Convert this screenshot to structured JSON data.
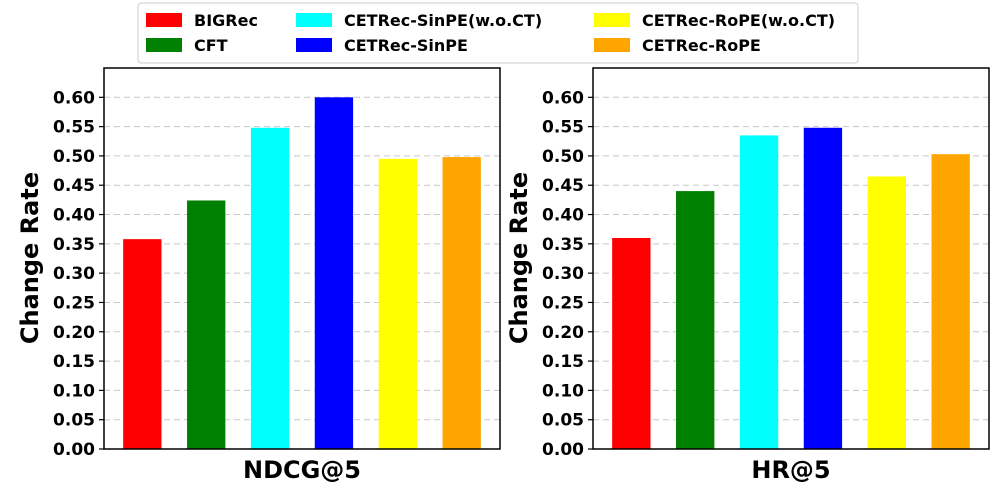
{
  "legend": [
    {
      "label": "BIGRec",
      "color": "#ff0000"
    },
    {
      "label": "CFT",
      "color": "#008000"
    },
    {
      "label": "CETRec-SinPE(w.o.CT)",
      "color": "#00ffff"
    },
    {
      "label": "CETRec-SinPE",
      "color": "#0000ff"
    },
    {
      "label": "CETRec-RoPE(w.o.CT)",
      "color": "#ffff00"
    },
    {
      "label": "CETRec-RoPE",
      "color": "#ffa500"
    }
  ],
  "chart_data": [
    {
      "type": "bar",
      "title": "",
      "xlabel": "NDCG@5",
      "ylabel": "Change Rate",
      "ylim": [
        0,
        0.65
      ],
      "yticks": [
        "0.00",
        "0.05",
        "0.10",
        "0.15",
        "0.20",
        "0.25",
        "0.30",
        "0.35",
        "0.40",
        "0.45",
        "0.50",
        "0.55",
        "0.60"
      ],
      "grid": "y-dashed",
      "categories": [
        "BIGRec",
        "CFT",
        "CETRec-SinPE(w.o.CT)",
        "CETRec-SinPE",
        "CETRec-RoPE(w.o.CT)",
        "CETRec-RoPE"
      ],
      "values": [
        0.358,
        0.424,
        0.548,
        0.6,
        0.495,
        0.498
      ],
      "colors": [
        "#ff0000",
        "#008000",
        "#00ffff",
        "#0000ff",
        "#ffff00",
        "#ffa500"
      ]
    },
    {
      "type": "bar",
      "title": "",
      "xlabel": "HR@5",
      "ylabel": "Change Rate",
      "ylim": [
        0,
        0.65
      ],
      "yticks": [
        "0.00",
        "0.05",
        "0.10",
        "0.15",
        "0.20",
        "0.25",
        "0.30",
        "0.35",
        "0.40",
        "0.45",
        "0.50",
        "0.55",
        "0.60"
      ],
      "grid": "y-dashed",
      "categories": [
        "BIGRec",
        "CFT",
        "CETRec-SinPE(w.o.CT)",
        "CETRec-SinPE",
        "CETRec-RoPE(w.o.CT)",
        "CETRec-RoPE"
      ],
      "values": [
        0.36,
        0.44,
        0.535,
        0.548,
        0.465,
        0.503
      ],
      "colors": [
        "#ff0000",
        "#008000",
        "#00ffff",
        "#0000ff",
        "#ffff00",
        "#ffa500"
      ]
    }
  ]
}
